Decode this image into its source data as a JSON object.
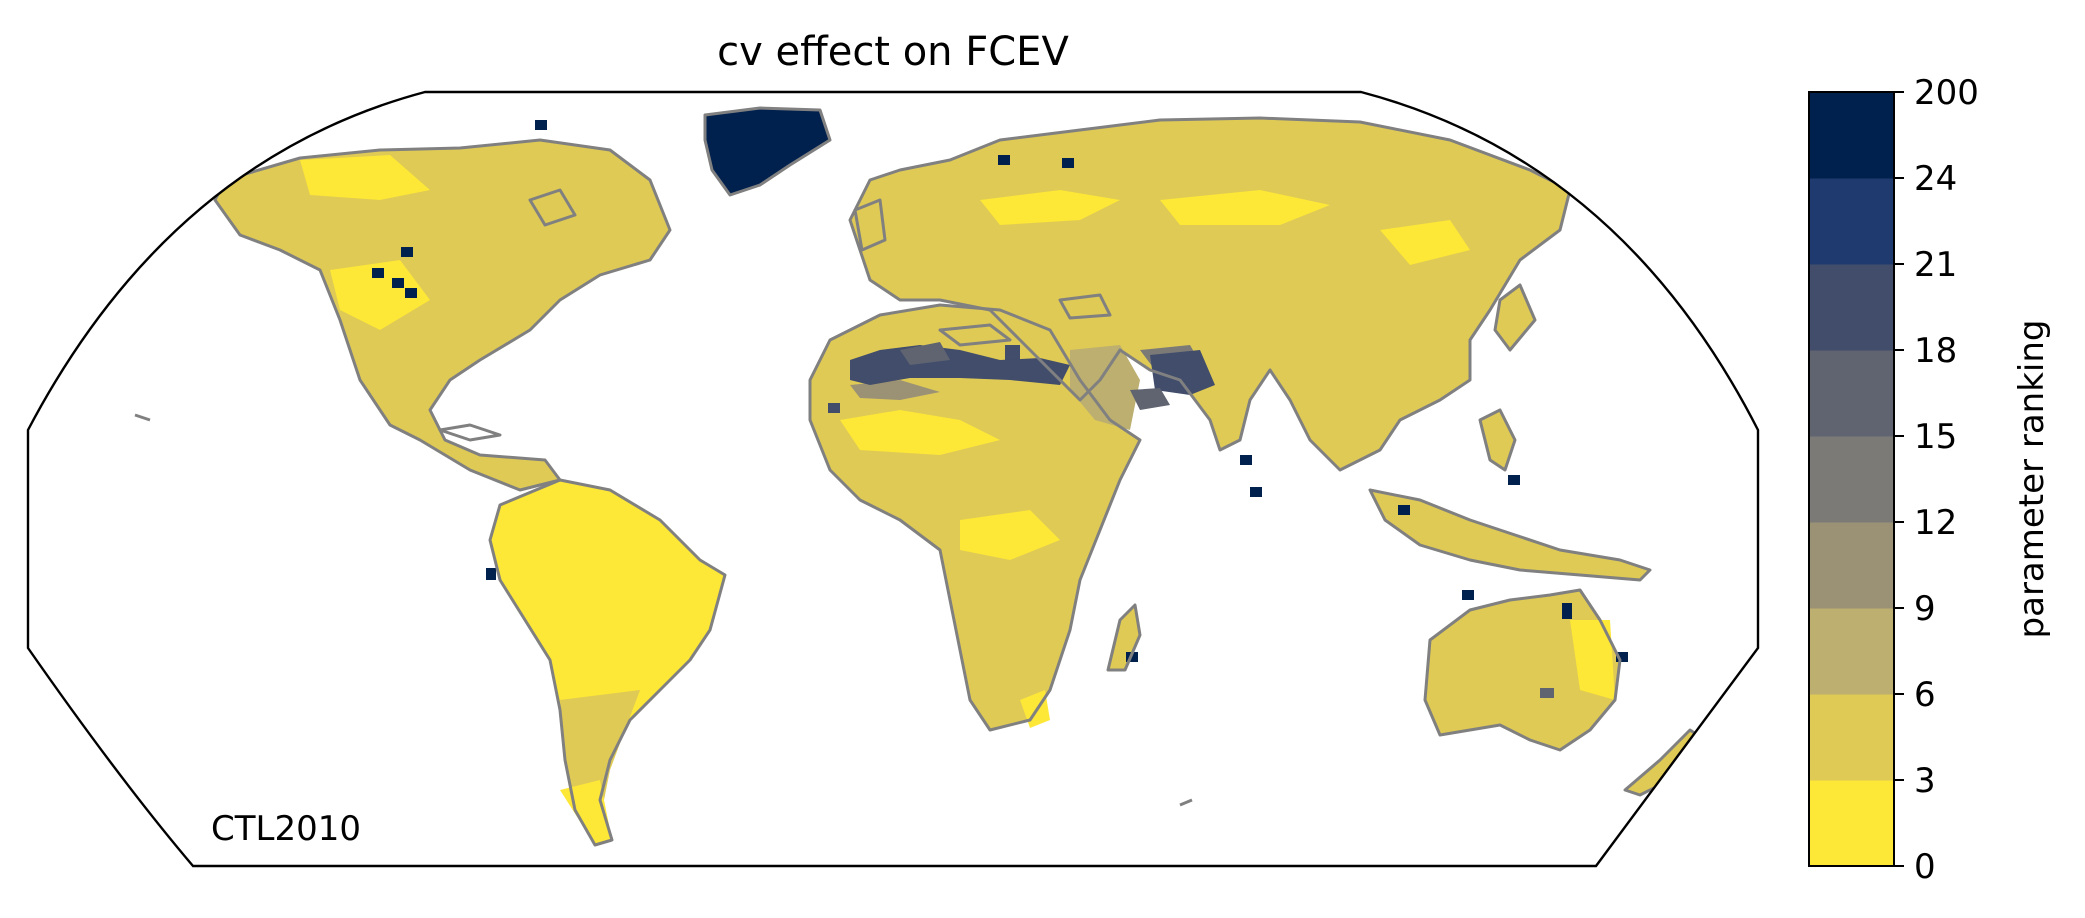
{
  "title": "cv effect on FCEV",
  "panel_label": "CTL2010",
  "colorbar": {
    "label": "parameter ranking",
    "tick_labels": [
      "0",
      "3",
      "6",
      "9",
      "12",
      "15",
      "18",
      "21",
      "24",
      "200"
    ],
    "bins": [
      {
        "from": 0,
        "to": 3,
        "color": "#fde737"
      },
      {
        "from": 3,
        "to": 6,
        "color": "#dfca55"
      },
      {
        "from": 6,
        "to": 9,
        "color": "#bcaf6f"
      },
      {
        "from": 9,
        "to": 12,
        "color": "#9b9275"
      },
      {
        "from": 12,
        "to": 15,
        "color": "#7b7a77"
      },
      {
        "from": 15,
        "to": 18,
        "color": "#5f6470"
      },
      {
        "from": 18,
        "to": 21,
        "color": "#414d6b"
      },
      {
        "from": 21,
        "to": 24,
        "color": "#1f3a6e"
      },
      {
        "from": 24,
        "to": 200,
        "color": "#00204d"
      }
    ]
  },
  "map": {
    "projection": "Robinson",
    "coastline_color": "#808080",
    "dominant_ranking_class": "3-6"
  }
}
